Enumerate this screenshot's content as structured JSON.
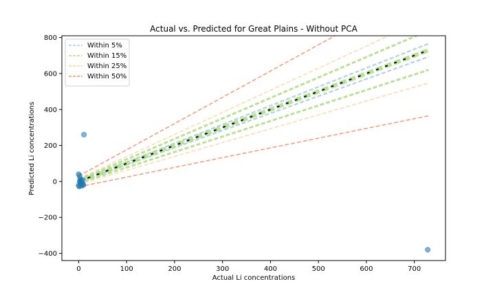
{
  "chart_data": {
    "type": "scatter",
    "title": "Actual vs. Predicted for Great Plains - Without PCA",
    "xlabel": "Actual Li concentrations",
    "ylabel": "Predicted Li concentrations",
    "xlim": [
      -35,
      765
    ],
    "ylim": [
      -440,
      810
    ],
    "xticks": [
      0,
      100,
      200,
      300,
      400,
      500,
      600,
      700
    ],
    "yticks": [
      -400,
      -200,
      0,
      200,
      400,
      600,
      800
    ],
    "grid": false,
    "legend_position": "top-left",
    "points": {
      "color": "#1f77b4",
      "x": [
        0,
        2,
        3,
        5,
        7,
        10,
        0,
        1,
        4,
        6,
        2,
        11,
        4,
        8,
        9,
        728
      ],
      "y": [
        40,
        30,
        15,
        5,
        -10,
        -20,
        -22,
        -28,
        -18,
        -25,
        0,
        260,
        -5,
        8,
        -15,
        -380
      ]
    },
    "reference_lines": [
      {
        "name": "Within 5%",
        "tolerance": 0.05,
        "color": "#a6cee3",
        "dash": "6,3"
      },
      {
        "name": "Within 15%",
        "tolerance": 0.15,
        "color": "#b2df8a",
        "dash": "6,3"
      },
      {
        "name": "Within 25%",
        "tolerance": 0.25,
        "color": "#fdd49e",
        "dash": "6,3"
      },
      {
        "name": "Within 50%",
        "tolerance": 0.5,
        "color": "#fc8d62",
        "dash": "6,3"
      }
    ],
    "identity_line": {
      "color": "#000000",
      "dash": "4,10"
    }
  }
}
